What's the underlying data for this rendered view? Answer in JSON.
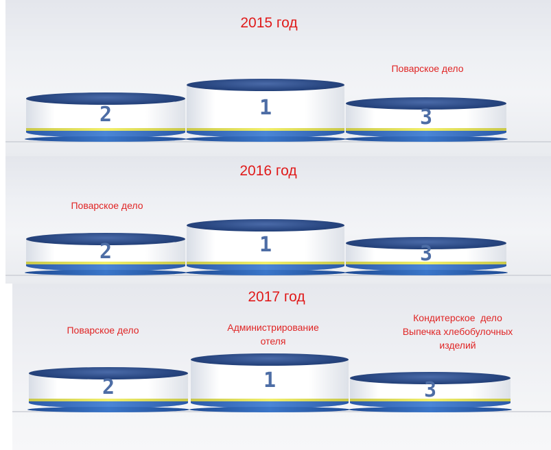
{
  "years": [
    {
      "title": "2015 год",
      "captions": {
        "first": "",
        "second": "",
        "third": "Поварское дело"
      }
    },
    {
      "title": "2016 год",
      "captions": {
        "first": "",
        "second": "Поварское дело",
        "third": ""
      }
    },
    {
      "title": "2017 год",
      "captions": {
        "first": "Администрирование\nотеля",
        "second": "Поварское дело",
        "third": "Кондитерское  дело\nВыпечка хлебобулочных\nизделий"
      }
    }
  ],
  "places": {
    "first": "1",
    "second": "2",
    "third": "3"
  },
  "colors": {
    "caption": "#e01a1a",
    "podium_top": "#27457f",
    "podium_number": "#4d6da5",
    "stripe_yellow": "#f1ef6a",
    "stripe_blue": "#4b86d6"
  }
}
